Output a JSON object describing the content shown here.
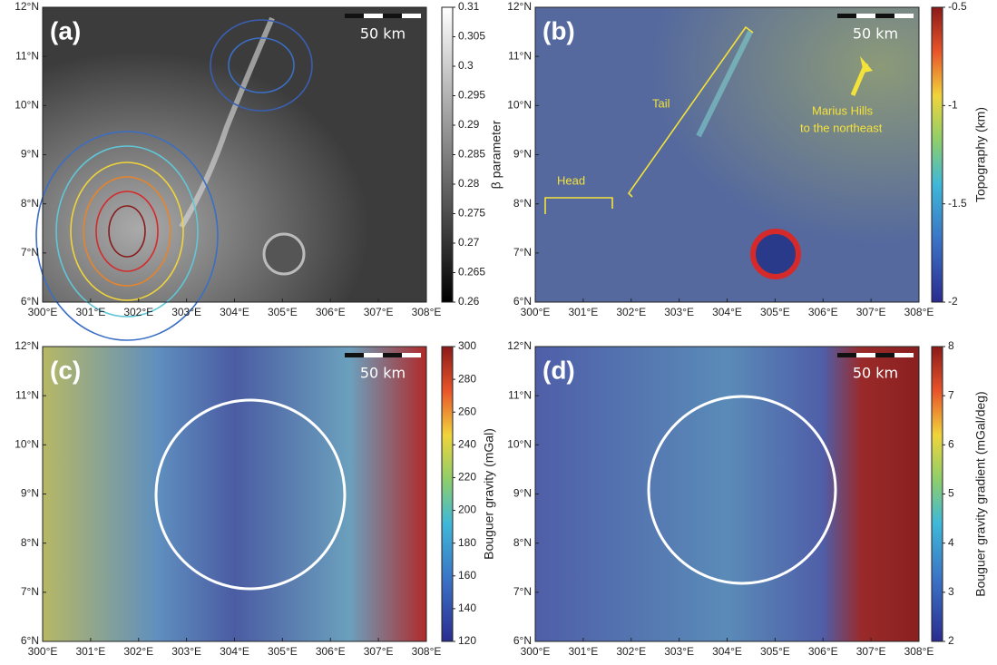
{
  "panels": [
    {
      "label": "(a)",
      "scale_bar": "50 km",
      "xlim": [
        300,
        308
      ],
      "xticks": [
        {
          "value": 300,
          "label": "300°E"
        },
        {
          "value": 301,
          "label": "301°E"
        },
        {
          "value": 302,
          "label": "302°E"
        },
        {
          "value": 303,
          "label": "303°E"
        },
        {
          "value": 304,
          "label": "304°E"
        },
        {
          "value": 305,
          "label": "305°E"
        },
        {
          "value": 306,
          "label": "306°E"
        },
        {
          "value": 307,
          "label": "307°E"
        },
        {
          "value": 308,
          "label": "308°E"
        }
      ],
      "ylim": [
        6,
        12
      ],
      "yticks": [
        {
          "value": 6,
          "label": "6°N"
        },
        {
          "value": 7,
          "label": "7°N"
        },
        {
          "value": 8,
          "label": "8°N"
        },
        {
          "value": 9,
          "label": "9°N"
        },
        {
          "value": 10,
          "label": "10°N"
        },
        {
          "value": 11,
          "label": "11°N"
        },
        {
          "value": 12,
          "label": "12°N"
        }
      ],
      "colorbar": {
        "label": "β parameter",
        "lim": [
          0.26,
          0.31
        ],
        "ticks": [
          0.26,
          0.265,
          0.27,
          0.275,
          0.28,
          0.285,
          0.29,
          0.295,
          0.3,
          0.305,
          0.31
        ]
      }
    },
    {
      "label": "(b)",
      "scale_bar": "50 km",
      "xlim": [
        300,
        308
      ],
      "xticks": [
        {
          "value": 300,
          "label": "300°E"
        },
        {
          "value": 301,
          "label": "301°E"
        },
        {
          "value": 302,
          "label": "302°E"
        },
        {
          "value": 303,
          "label": "303°E"
        },
        {
          "value": 304,
          "label": "304°E"
        },
        {
          "value": 305,
          "label": "305°E"
        },
        {
          "value": 306,
          "label": "306°E"
        },
        {
          "value": 307,
          "label": "307°E"
        },
        {
          "value": 308,
          "label": "308°E"
        }
      ],
      "ylim": [
        6,
        12
      ],
      "yticks": [
        {
          "value": 6,
          "label": "6°N"
        },
        {
          "value": 7,
          "label": "7°N"
        },
        {
          "value": 8,
          "label": "8°N"
        },
        {
          "value": 9,
          "label": "9°N"
        },
        {
          "value": 10,
          "label": "10°N"
        },
        {
          "value": 11,
          "label": "11°N"
        },
        {
          "value": 12,
          "label": "12°N"
        }
      ],
      "colorbar": {
        "label": "Topography (km)",
        "lim": [
          -2,
          -0.5
        ],
        "ticks": [
          -2,
          -1.5,
          -1,
          -0.5
        ]
      },
      "annotations": [
        "Head",
        "Tail",
        "Marius Hills",
        "to the northeast"
      ]
    },
    {
      "label": "(c)",
      "scale_bar": "50 km",
      "xlim": [
        300,
        308
      ],
      "xticks": [
        {
          "value": 300,
          "label": "300°E"
        },
        {
          "value": 301,
          "label": "301°E"
        },
        {
          "value": 302,
          "label": "302°E"
        },
        {
          "value": 303,
          "label": "303°E"
        },
        {
          "value": 304,
          "label": "304°E"
        },
        {
          "value": 305,
          "label": "305°E"
        },
        {
          "value": 306,
          "label": "306°E"
        },
        {
          "value": 307,
          "label": "307°E"
        },
        {
          "value": 308,
          "label": "308°E"
        }
      ],
      "ylim": [
        6,
        12
      ],
      "yticks": [
        {
          "value": 6,
          "label": "6°N"
        },
        {
          "value": 7,
          "label": "7°N"
        },
        {
          "value": 8,
          "label": "8°N"
        },
        {
          "value": 9,
          "label": "9°N"
        },
        {
          "value": 10,
          "label": "10°N"
        },
        {
          "value": 11,
          "label": "11°N"
        },
        {
          "value": 12,
          "label": "12°N"
        }
      ],
      "colorbar": {
        "label": "Bouguer gravity (mGal)",
        "lim": [
          120,
          300
        ],
        "ticks": [
          120,
          140,
          160,
          180,
          200,
          220,
          240,
          260,
          280,
          300
        ]
      }
    },
    {
      "label": "(d)",
      "scale_bar": "50 km",
      "xlim": [
        300,
        308
      ],
      "xticks": [
        {
          "value": 300,
          "label": "300°E"
        },
        {
          "value": 301,
          "label": "301°E"
        },
        {
          "value": 302,
          "label": "302°E"
        },
        {
          "value": 303,
          "label": "303°E"
        },
        {
          "value": 304,
          "label": "304°E"
        },
        {
          "value": 305,
          "label": "305°E"
        },
        {
          "value": 306,
          "label": "306°E"
        },
        {
          "value": 307,
          "label": "307°E"
        },
        {
          "value": 308,
          "label": "308°E"
        }
      ],
      "ylim": [
        6,
        12
      ],
      "yticks": [
        {
          "value": 6,
          "label": "6°N"
        },
        {
          "value": 7,
          "label": "7°N"
        },
        {
          "value": 8,
          "label": "8°N"
        },
        {
          "value": 9,
          "label": "9°N"
        },
        {
          "value": 10,
          "label": "10°N"
        },
        {
          "value": 11,
          "label": "11°N"
        },
        {
          "value": 12,
          "label": "12°N"
        }
      ],
      "colorbar": {
        "label": "Bouguer gravity gradient (mGal/deg)",
        "lim": [
          2,
          8
        ],
        "ticks": [
          2,
          3,
          4,
          5,
          6,
          7,
          8
        ]
      }
    }
  ]
}
